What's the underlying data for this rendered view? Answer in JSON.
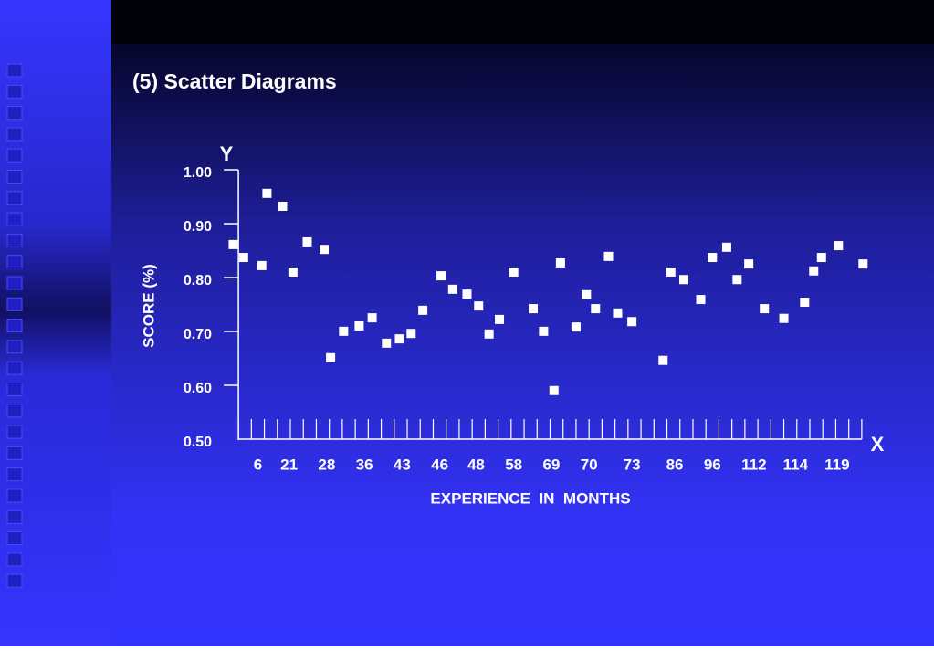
{
  "chart_data": {
    "type": "scatter",
    "title": "(5) Scatter Diagrams",
    "y_axis_letter": "Y",
    "x_axis_letter": "X",
    "ylabel": "SCORE (%)",
    "xlabel": "EXPERIENCE  IN  MONTHS",
    "color": "#ffffff",
    "ylim": [
      0.5,
      1.0
    ],
    "yticks": [
      {
        "value": 0.5,
        "label": "0.50"
      },
      {
        "value": 0.6,
        "label": "0.60"
      },
      {
        "value": 0.7,
        "label": "0.70"
      },
      {
        "value": 0.8,
        "label": "0.80"
      },
      {
        "value": 0.9,
        "label": "0.90"
      },
      {
        "value": 1.0,
        "label": "1.00"
      }
    ],
    "xlim": [
      -0.5,
      48.5
    ],
    "xticks": [
      {
        "value": 1.5,
        "label": "6"
      },
      {
        "value": 3.9,
        "label": "21"
      },
      {
        "value": 6.8,
        "label": "28"
      },
      {
        "value": 9.7,
        "label": "36"
      },
      {
        "value": 12.6,
        "label": "43"
      },
      {
        "value": 15.5,
        "label": "46"
      },
      {
        "value": 18.3,
        "label": "48"
      },
      {
        "value": 21.2,
        "label": "58"
      },
      {
        "value": 24.1,
        "label": "69"
      },
      {
        "value": 27.0,
        "label": "70"
      },
      {
        "value": 30.3,
        "label": "73"
      },
      {
        "value": 33.6,
        "label": "86"
      },
      {
        "value": 36.5,
        "label": "96"
      },
      {
        "value": 39.7,
        "label": "112"
      },
      {
        "value": 42.9,
        "label": "114"
      },
      {
        "value": 46.1,
        "label": "119"
      }
    ],
    "xminorticks": [
      0,
      1,
      2,
      3,
      4,
      5,
      6,
      7,
      8,
      9,
      10,
      11,
      12,
      13,
      14,
      15,
      16,
      17,
      18,
      19,
      20,
      21,
      22,
      23,
      24,
      25,
      26,
      27,
      28,
      29,
      30,
      31,
      32,
      33,
      34,
      35,
      36,
      37,
      38,
      39,
      40,
      41,
      42,
      43,
      44,
      45,
      46,
      47,
      48
    ],
    "x": [
      -0.4,
      0.4,
      1.8,
      2.2,
      3.4,
      4.2,
      5.3,
      6.6,
      7.1,
      8.1,
      9.3,
      10.3,
      11.4,
      12.4,
      13.3,
      14.2,
      15.6,
      16.5,
      17.6,
      18.5,
      19.3,
      20.1,
      21.2,
      22.7,
      23.5,
      24.3,
      24.8,
      26.0,
      26.8,
      27.5,
      28.5,
      29.2,
      30.3,
      32.7,
      33.3,
      34.3,
      35.6,
      36.5,
      37.6,
      38.4,
      39.3,
      40.5,
      42.0,
      43.6,
      44.3,
      44.9,
      46.2,
      48.1
    ],
    "values": [
      0.868,
      0.844,
      0.829,
      0.963,
      0.939,
      0.817,
      0.873,
      0.859,
      0.658,
      0.707,
      0.717,
      0.732,
      0.685,
      0.693,
      0.703,
      0.746,
      0.81,
      0.785,
      0.776,
      0.754,
      0.702,
      0.729,
      0.817,
      0.749,
      0.707,
      0.597,
      0.834,
      0.715,
      0.775,
      0.749,
      0.846,
      0.741,
      0.725,
      0.653,
      0.817,
      0.803,
      0.766,
      0.844,
      0.863,
      0.803,
      0.832,
      0.749,
      0.731,
      0.761,
      0.819,
      0.844,
      0.866,
      0.832
    ]
  }
}
